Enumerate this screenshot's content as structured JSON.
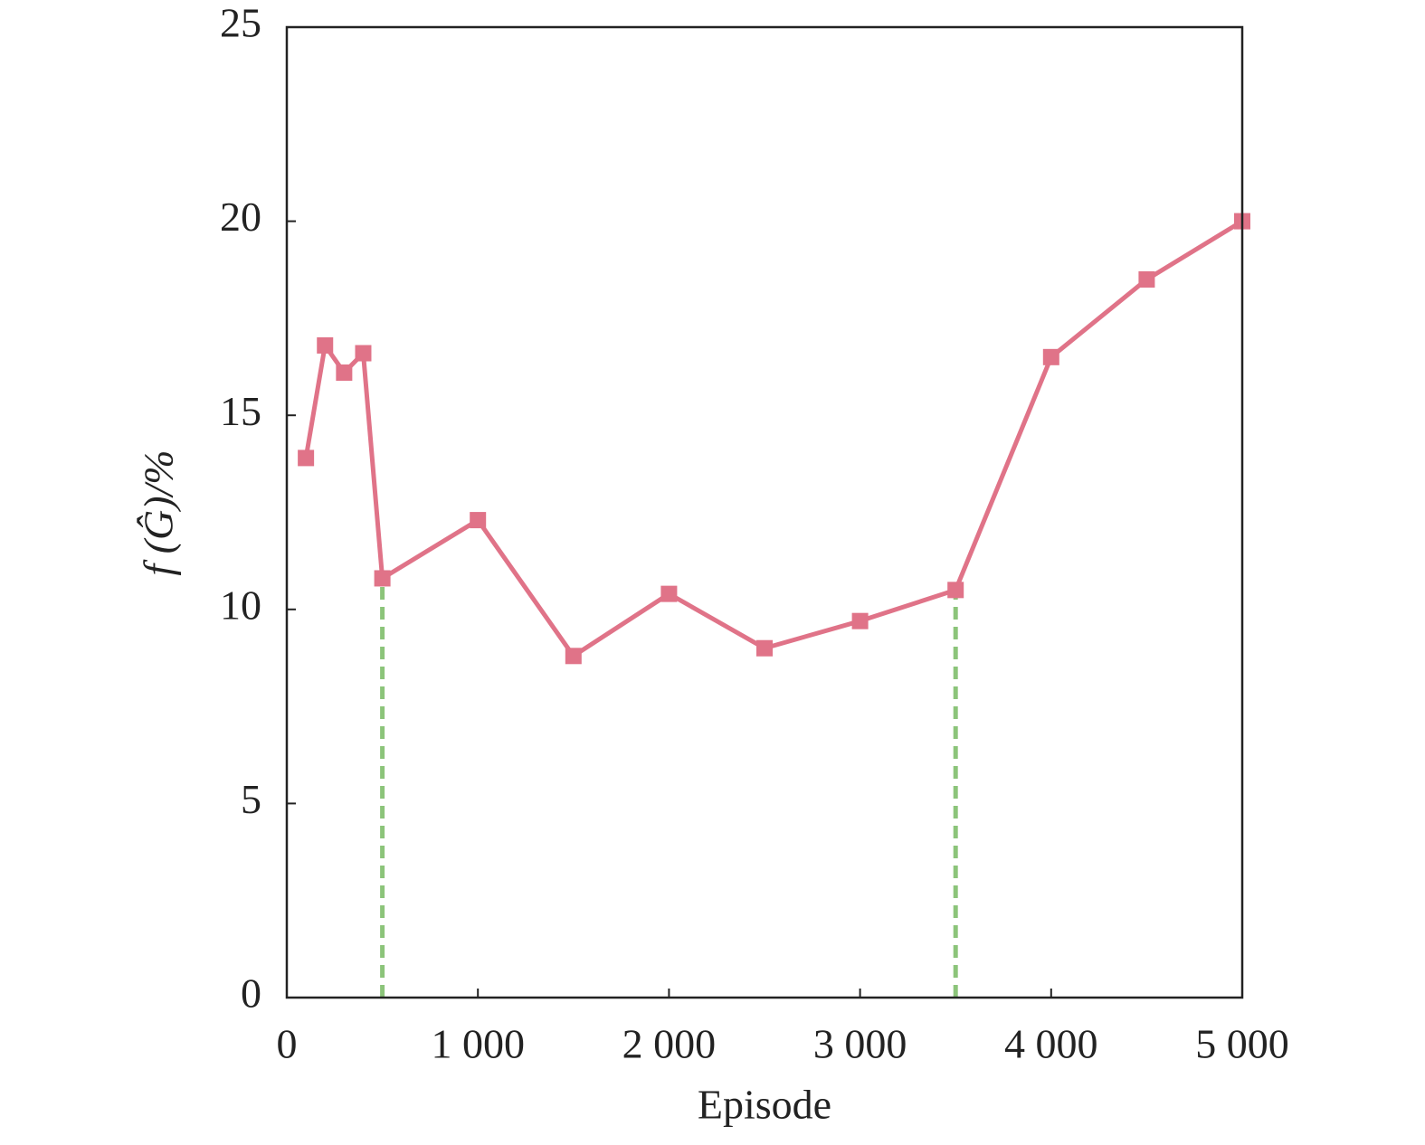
{
  "chart_data": {
    "type": "line",
    "x_label": "Episode",
    "y_label": "f (Ĝ)/%",
    "x": [
      100,
      200,
      300,
      400,
      500,
      1000,
      1500,
      2000,
      2500,
      3000,
      3500,
      4000,
      4500,
      5000
    ],
    "series": [
      {
        "color": "#e07388",
        "values": [
          13.9,
          16.8,
          16.1,
          16.6,
          10.8,
          12.3,
          8.8,
          10.4,
          9.0,
          9.7,
          10.5,
          16.5,
          18.5,
          20.0
        ]
      }
    ],
    "xlim": [
      0,
      5000
    ],
    "xticks": [
      0,
      {
        "value": 1000,
        "label": "1 000"
      },
      {
        "value": 2000,
        "label": "2 000"
      },
      {
        "value": 3000,
        "label": "3 000"
      },
      {
        "value": 4000,
        "label": "4 000"
      },
      {
        "value": 5000,
        "label": "5 000"
      }
    ],
    "ylim": [
      0,
      25
    ],
    "yticks": [
      0,
      5,
      10,
      15,
      20,
      25
    ],
    "reference_lines": {
      "x": [
        500,
        3500
      ],
      "color": "#8cc47a"
    }
  }
}
